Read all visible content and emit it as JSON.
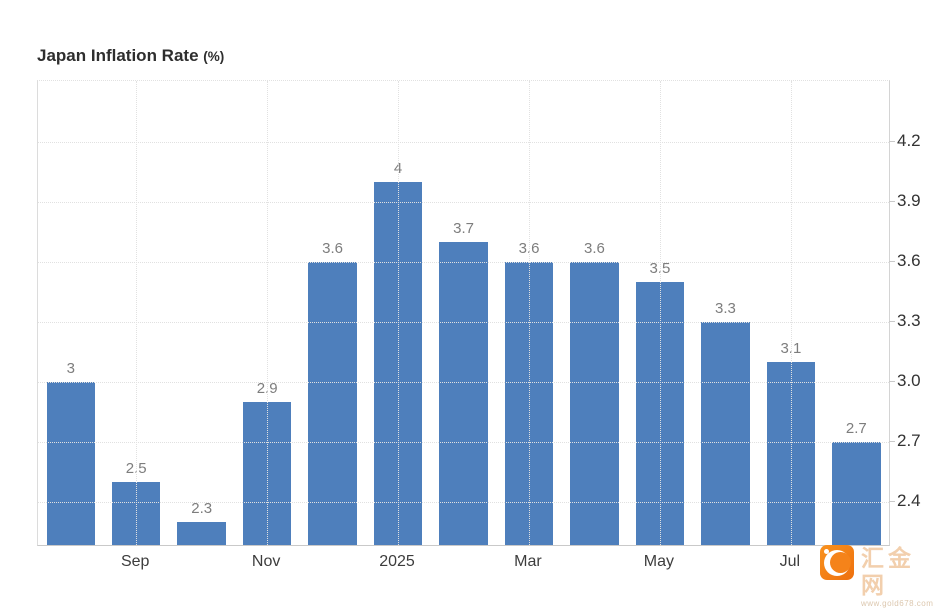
{
  "title": {
    "main": "Japan Inflation Rate",
    "suffix": "(%)"
  },
  "chart_data": {
    "type": "bar",
    "title": "Japan Inflation Rate (%)",
    "values": [
      3,
      2.5,
      2.3,
      2.9,
      3.6,
      4,
      3.7,
      3.6,
      3.6,
      3.5,
      3.3,
      3.1,
      2.7
    ],
    "bar_labels": [
      "3",
      "2.5",
      "2.3",
      "2.9",
      "3.6",
      "4",
      "3.7",
      "3.6",
      "3.6",
      "3.5",
      "3.3",
      "3.1",
      "2.7"
    ],
    "x_tick_labels": [
      {
        "label": "Sep",
        "bar_index": 1
      },
      {
        "label": "Nov",
        "bar_index": 3
      },
      {
        "label": "2025",
        "bar_index": 5
      },
      {
        "label": "Mar",
        "bar_index": 7
      },
      {
        "label": "May",
        "bar_index": 9
      },
      {
        "label": "Jul",
        "bar_index": 11
      }
    ],
    "y_ticks": [
      "4.2",
      "3.9",
      "3.6",
      "3.3",
      "3.0",
      "2.7",
      "2.4"
    ],
    "ylim": [
      2.185,
      4.505
    ],
    "y_axis_side": "right",
    "grid": "dotted",
    "legend": "none",
    "bar_color": "#4e7fbc",
    "label_color": "#7d7d7d"
  },
  "watermark": {
    "brand": "汇金网",
    "url_text": "www.gold678.com",
    "icon": "crescent-logo-icon",
    "icon_color": "#f5831a"
  }
}
